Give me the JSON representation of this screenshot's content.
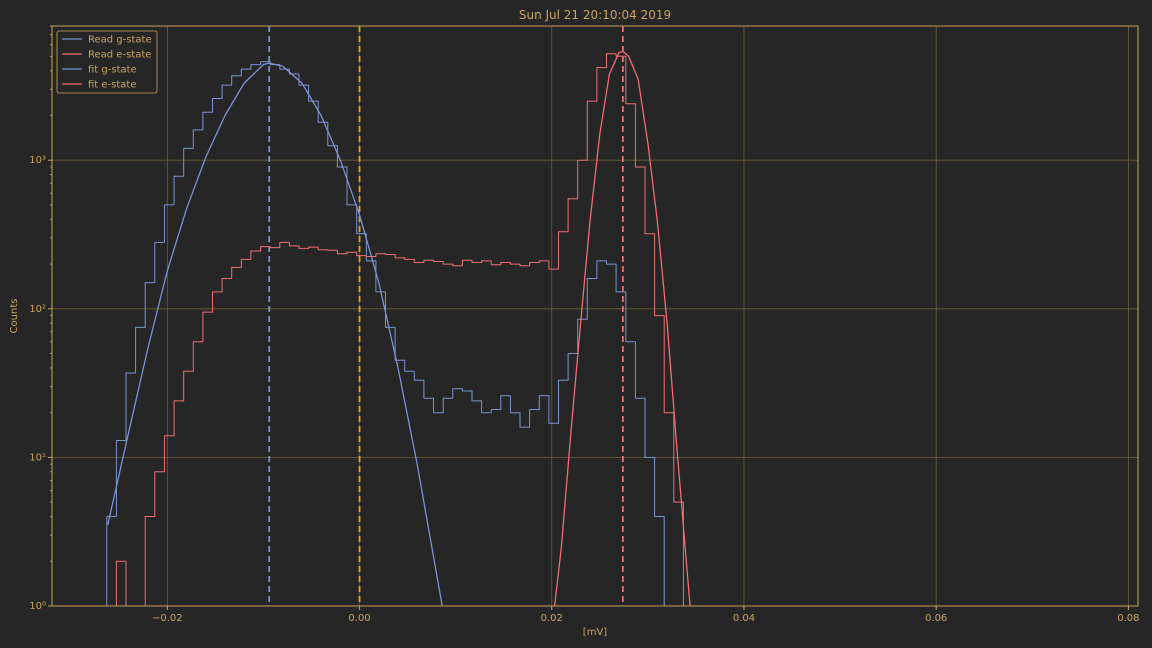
{
  "chart_data": {
    "type": "line",
    "title": "Sun Jul 21 20:10:04 2019",
    "xlabel": "[mV]",
    "ylabel": "Counts",
    "xlim": [
      -0.032,
      0.081
    ],
    "ylim": [
      1,
      8000
    ],
    "yscale": "log",
    "grid": true,
    "legend_position": "top-left",
    "x_ticks": [
      -0.02,
      0.0,
      0.02,
      0.04,
      0.06,
      0.08
    ],
    "x_tick_labels": [
      "−0.02",
      "0.00",
      "0.02",
      "0.04",
      "0.06",
      "0.08"
    ],
    "y_ticks": [
      1,
      10,
      100,
      1000
    ],
    "y_tick_labels": [
      "10⁰",
      "10¹",
      "10²",
      "10³"
    ],
    "colors": {
      "background": "#262626",
      "axes": "#c8a45c",
      "grid": "#6b6036",
      "g_state": "#7b93d4",
      "e_state": "#ef6e73",
      "threshold": "#e3a42c"
    },
    "vertical_lines": [
      {
        "x": -0.0094,
        "color": "#7b93d4",
        "style": "dashed"
      },
      {
        "x": 0.0,
        "color": "#e3a42c",
        "style": "dashed"
      },
      {
        "x": 0.0274,
        "color": "#ef6e73",
        "style": "dashed"
      }
    ],
    "series": [
      {
        "name": "Read g-state",
        "style": "step",
        "color": "#7b93d4",
        "x": [
          -0.0258,
          -0.0248,
          -0.0238,
          -0.0228,
          -0.0218,
          -0.0208,
          -0.0198,
          -0.0188,
          -0.0178,
          -0.0168,
          -0.0158,
          -0.0148,
          -0.0138,
          -0.0128,
          -0.0118,
          -0.0108,
          -0.0098,
          -0.0088,
          -0.0078,
          -0.0068,
          -0.0058,
          -0.0048,
          -0.0038,
          -0.0028,
          -0.0018,
          -0.0008,
          0.0002,
          0.0012,
          0.0022,
          0.0032,
          0.0042,
          0.0052,
          0.0062,
          0.0072,
          0.0082,
          0.0092,
          0.0102,
          0.0112,
          0.0122,
          0.0132,
          0.0142,
          0.0152,
          0.0162,
          0.0172,
          0.0182,
          0.0192,
          0.0202,
          0.0212,
          0.0222,
          0.0232,
          0.0242,
          0.0252,
          0.0262,
          0.0272,
          0.0282,
          0.0292,
          0.0302,
          0.0312,
          0.0322,
          0.0332
        ],
        "values": [
          4,
          13,
          37,
          75,
          150,
          280,
          500,
          780,
          1200,
          1600,
          2100,
          2600,
          3200,
          3700,
          4100,
          4400,
          4600,
          4400,
          4100,
          3800,
          3200,
          2500,
          1800,
          1250,
          900,
          500,
          320,
          210,
          130,
          75,
          45,
          38,
          33,
          25,
          20,
          25,
          29,
          28,
          24,
          20,
          21,
          26,
          20,
          16,
          21,
          26,
          17,
          33,
          50,
          85,
          160,
          210,
          200,
          130,
          60,
          25,
          10,
          4,
          1,
          1
        ]
      },
      {
        "name": "Read e-state",
        "style": "step",
        "color": "#ef6e73",
        "x": [
          -0.0248,
          -0.0238,
          -0.0228,
          -0.0218,
          -0.0208,
          -0.0198,
          -0.0188,
          -0.0178,
          -0.0168,
          -0.0158,
          -0.0148,
          -0.0138,
          -0.0128,
          -0.0118,
          -0.0108,
          -0.0098,
          -0.0088,
          -0.0078,
          -0.0068,
          -0.0058,
          -0.0048,
          -0.0038,
          -0.0028,
          -0.0018,
          -0.0008,
          0.0002,
          0.0012,
          0.0022,
          0.0032,
          0.0042,
          0.0052,
          0.0062,
          0.0072,
          0.0082,
          0.0092,
          0.0102,
          0.0112,
          0.0122,
          0.0132,
          0.0142,
          0.0152,
          0.0162,
          0.0172,
          0.0182,
          0.0192,
          0.0202,
          0.0212,
          0.0222,
          0.0232,
          0.0242,
          0.0252,
          0.0262,
          0.0272,
          0.0282,
          0.0292,
          0.0302,
          0.0312,
          0.0322,
          0.0332,
          0.0342
        ],
        "values": [
          2,
          1,
          1,
          4,
          8,
          14,
          24,
          38,
          60,
          95,
          130,
          160,
          190,
          215,
          245,
          262,
          258,
          280,
          265,
          255,
          260,
          250,
          248,
          235,
          240,
          228,
          225,
          235,
          232,
          220,
          215,
          205,
          212,
          208,
          200,
          195,
          212,
          205,
          210,
          198,
          205,
          200,
          195,
          205,
          210,
          185,
          330,
          550,
          1000,
          2500,
          4200,
          5200,
          5000,
          2400,
          900,
          320,
          90,
          20,
          5,
          1
        ]
      },
      {
        "name": "fit g-state",
        "style": "line",
        "color": "#7b93d4",
        "x": [
          -0.0262,
          -0.024,
          -0.022,
          -0.02,
          -0.018,
          -0.016,
          -0.014,
          -0.012,
          -0.01,
          -0.0094,
          -0.008,
          -0.006,
          -0.004,
          -0.002,
          0.0,
          0.002,
          0.004,
          0.006,
          0.0086
        ],
        "values": [
          3.5,
          15,
          55,
          180,
          470,
          1050,
          2000,
          3300,
          4400,
          4500,
          4300,
          3300,
          2000,
          1000,
          430,
          150,
          40,
          9,
          1
        ]
      },
      {
        "name": "fit e-state",
        "style": "line",
        "color": "#ef6e73",
        "x": [
          0.0203,
          0.021,
          0.022,
          0.023,
          0.024,
          0.025,
          0.026,
          0.027,
          0.0274,
          0.028,
          0.029,
          0.03,
          0.031,
          0.032,
          0.033,
          0.034,
          0.0344
        ],
        "values": [
          1,
          2.5,
          15,
          80,
          400,
          1500,
          3800,
          5300,
          5400,
          5000,
          3500,
          1300,
          380,
          80,
          12,
          2,
          1
        ]
      }
    ]
  }
}
